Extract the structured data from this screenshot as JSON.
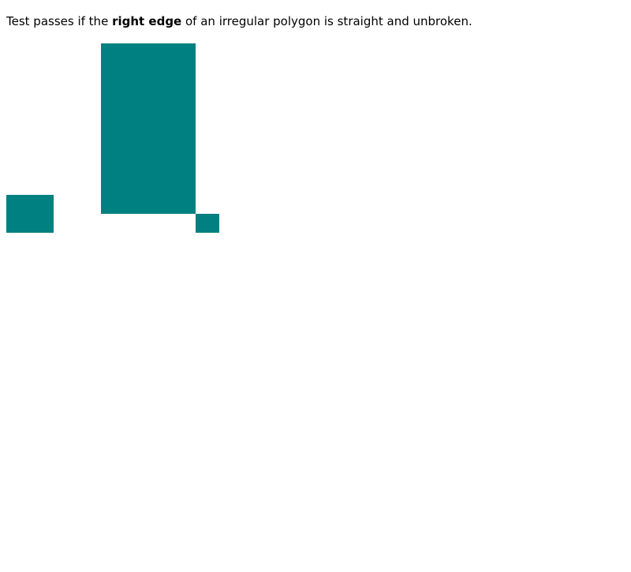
{
  "instruction": {
    "prefix": "Test passes if the ",
    "emphasis": "right edge",
    "suffix": " of an irregular polygon is straight and unbroken."
  },
  "colors": {
    "polygon_fill": "#008080",
    "background": "#ffffff",
    "text": "#000000"
  }
}
